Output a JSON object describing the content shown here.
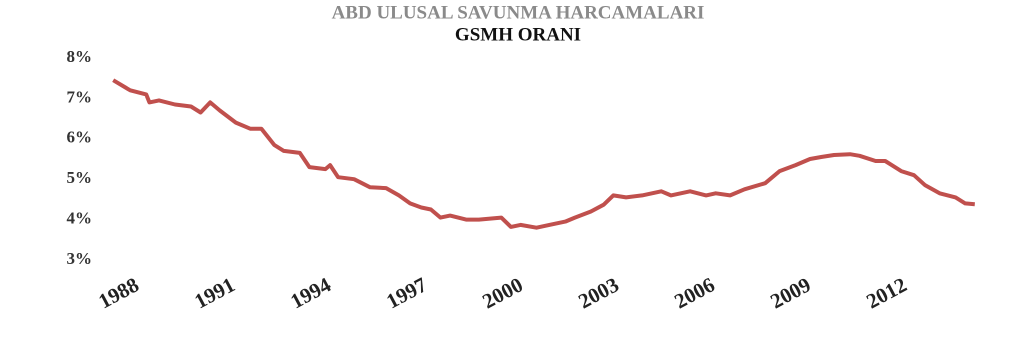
{
  "chart_data": {
    "type": "line",
    "title": "ABD ULUSAL SAVUNMA HARCAMALARI",
    "subtitle": "GSMH ORANI",
    "x": [
      1987.47,
      1988,
      1988.5,
      1988.6,
      1988.9,
      1989.4,
      1989.9,
      1990.2,
      1990.5,
      1990.8,
      1991.3,
      1991.75,
      1992.1,
      1992.5,
      1992.8,
      1993.3,
      1993.6,
      1994.1,
      1994.25,
      1994.5,
      1995,
      1995.5,
      1996,
      1996.4,
      1996.75,
      1997.1,
      1997.4,
      1997.7,
      1998,
      1998.5,
      1998.9,
      1999.6,
      1999.9,
      2000.2,
      2000.7,
      2001.1,
      2001.6,
      2001.9,
      2002.4,
      2002.8,
      2003.1,
      2003.5,
      2004,
      2004.6,
      2004.9,
      2005.5,
      2006,
      2006.3,
      2006.75,
      2007.2,
      2007.85,
      2008.3,
      2008.8,
      2009.25,
      2009.6,
      2010,
      2010.5,
      2010.8,
      2011.3,
      2011.6,
      2012.1,
      2012.5,
      2012.85,
      2013.3,
      2013.8,
      2014.1,
      2014.4
    ],
    "series": [
      {
        "name": "GSMH ORANI",
        "color": "#c0504d",
        "values": [
          7.45,
          7.2,
          7.1,
          6.9,
          6.95,
          6.85,
          6.8,
          6.65,
          6.9,
          6.7,
          6.4,
          6.25,
          6.25,
          5.85,
          5.7,
          5.65,
          5.3,
          5.25,
          5.35,
          5.05,
          5.0,
          4.8,
          4.78,
          4.6,
          4.4,
          4.3,
          4.25,
          4.05,
          4.1,
          4.0,
          4.0,
          4.05,
          3.82,
          3.87,
          3.8,
          3.87,
          3.95,
          4.05,
          4.2,
          4.37,
          4.6,
          4.55,
          4.6,
          4.7,
          4.6,
          4.7,
          4.6,
          4.65,
          4.6,
          4.75,
          4.9,
          5.2,
          5.35,
          5.5,
          5.55,
          5.6,
          5.62,
          5.58,
          5.45,
          5.45,
          5.2,
          5.1,
          4.85,
          4.65,
          4.55,
          4.4,
          4.38
        ]
      }
    ],
    "xlim": [
      1987.4,
      2014.5
    ],
    "xticks": [
      1988,
      1991,
      1994,
      1997,
      2000,
      2003,
      2006,
      2009,
      2012
    ],
    "ylim": [
      3,
      8
    ],
    "yticks": [
      {
        "value": 3,
        "label": "3%"
      },
      {
        "value": 4,
        "label": "4%"
      },
      {
        "value": 5,
        "label": "5%"
      },
      {
        "value": 6,
        "label": "6%"
      },
      {
        "value": 7,
        "label": "7%"
      },
      {
        "value": 8,
        "label": "8%"
      }
    ],
    "grid": false
  }
}
